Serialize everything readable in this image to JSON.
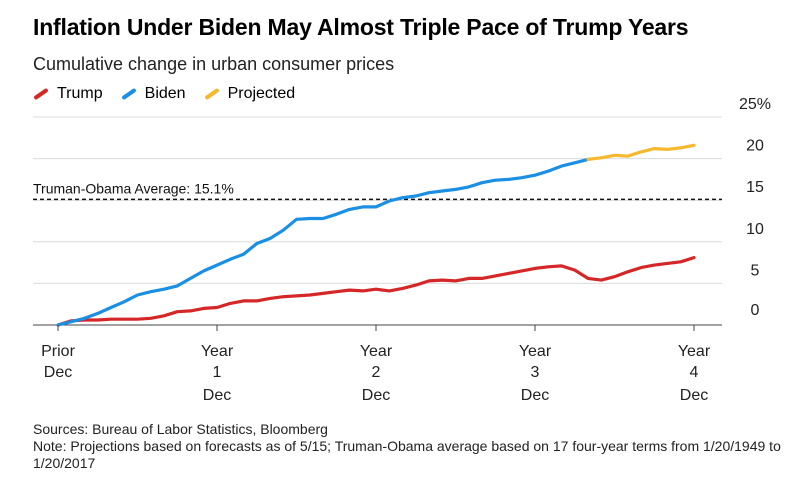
{
  "title": "Inflation Under Biden May Almost Triple Pace of Trump Years",
  "subtitle": "Cumulative change in urban consumer prices",
  "legend": [
    {
      "label": "Trump",
      "color": "#d62728"
    },
    {
      "label": "Biden",
      "color": "#1a8fe3"
    },
    {
      "label": "Projected",
      "color": "#f5b82e"
    }
  ],
  "footer": {
    "sources": "Sources: Bureau of Labor Statistics, Bloomberg",
    "note": "Note: Projections based on forecasts as of 5/15; Truman-Obama average based on 17 four-year terms from 1/20/1949 to 1/20/2017"
  },
  "chart_data": {
    "type": "line",
    "title": "Inflation Under Biden May Almost Triple Pace of Trump Years",
    "subtitle": "Cumulative change in urban consumer prices",
    "xlabel": "",
    "ylabel": "",
    "ylim": [
      0,
      25
    ],
    "xlim": [
      0,
      48
    ],
    "y_ticks": [
      "0",
      "5",
      "10",
      "15",
      "20",
      "25%"
    ],
    "y_tick_values": [
      0,
      5,
      10,
      15,
      20,
      25
    ],
    "x_ticks": [
      {
        "x": 0,
        "lines": [
          "Prior",
          "Dec"
        ]
      },
      {
        "x": 12,
        "lines": [
          "Year",
          "1",
          "Dec"
        ]
      },
      {
        "x": 24,
        "lines": [
          "Year",
          "2",
          "Dec"
        ]
      },
      {
        "x": 36,
        "lines": [
          "Year",
          "3",
          "Dec"
        ]
      },
      {
        "x": 48,
        "lines": [
          "Year",
          "4",
          "Dec"
        ]
      }
    ],
    "reference_line": {
      "label": "Truman-Obama Average: 15.1%",
      "value": 15.1
    },
    "grid": true,
    "legend_position": "top-left",
    "series": [
      {
        "name": "Trump",
        "color": "#d62728",
        "x": [
          0,
          1,
          2,
          3,
          4,
          5,
          6,
          7,
          8,
          9,
          10,
          11,
          12,
          13,
          14,
          15,
          16,
          17,
          18,
          19,
          20,
          21,
          22,
          23,
          24,
          25,
          26,
          27,
          28,
          29,
          30,
          31,
          32,
          33,
          34,
          35,
          36,
          37,
          38,
          39,
          40,
          41,
          42,
          43,
          44,
          45,
          46,
          47,
          48
        ],
        "values": [
          0.0,
          0.5,
          0.6,
          0.6,
          0.7,
          0.7,
          0.7,
          0.8,
          1.1,
          1.6,
          1.7,
          2.0,
          2.1,
          2.6,
          2.9,
          2.9,
          3.2,
          3.4,
          3.5,
          3.6,
          3.8,
          4.0,
          4.2,
          4.1,
          4.3,
          4.1,
          4.4,
          4.8,
          5.3,
          5.4,
          5.3,
          5.6,
          5.6,
          5.9,
          6.2,
          6.5,
          6.8,
          7.0,
          7.1,
          6.6,
          5.6,
          5.4,
          5.8,
          6.4,
          6.9,
          7.2,
          7.4,
          7.6,
          8.1
        ]
      },
      {
        "name": "Biden",
        "color": "#1a8fe3",
        "x": [
          0,
          1,
          2,
          3,
          4,
          5,
          6,
          7,
          8,
          9,
          10,
          11,
          12,
          13,
          14,
          15,
          16,
          17,
          18,
          19,
          20,
          21,
          22,
          23,
          24,
          25,
          26,
          27,
          28,
          29,
          30,
          31,
          32,
          33,
          34,
          35,
          36,
          37,
          38,
          39,
          40
        ],
        "values": [
          0.0,
          0.4,
          0.8,
          1.4,
          2.1,
          2.8,
          3.6,
          4.0,
          4.3,
          4.7,
          5.6,
          6.5,
          7.2,
          7.9,
          8.5,
          9.8,
          10.4,
          11.4,
          12.7,
          12.8,
          12.8,
          13.3,
          13.9,
          14.2,
          14.2,
          14.9,
          15.3,
          15.5,
          15.9,
          16.1,
          16.3,
          16.6,
          17.1,
          17.4,
          17.5,
          17.7,
          18.0,
          18.5,
          19.1,
          19.5,
          19.9
        ]
      },
      {
        "name": "Projected",
        "color": "#f5b82e",
        "x": [
          40,
          41,
          42,
          43,
          44,
          45,
          46,
          47,
          48
        ],
        "values": [
          19.9,
          20.1,
          20.4,
          20.3,
          20.8,
          21.2,
          21.1,
          21.3,
          21.6
        ]
      }
    ]
  }
}
